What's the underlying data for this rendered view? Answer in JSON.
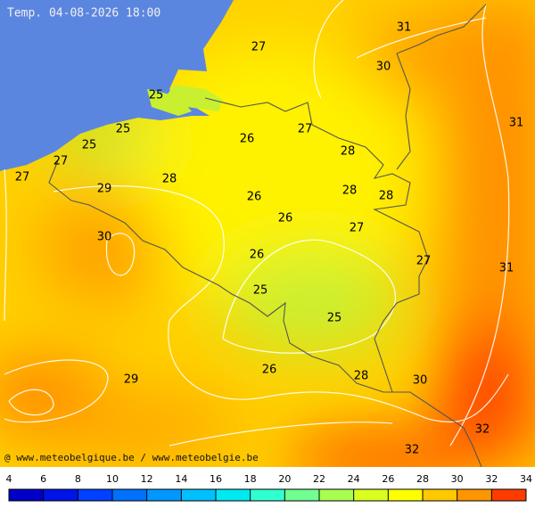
{
  "map": {
    "title": "Temp. 04-08-2026 18:00",
    "credit": "@ www.meteobelgique.be / www.meteobelgie.be",
    "contour_labels": [
      27,
      31,
      30,
      25,
      31,
      25,
      26,
      27,
      28,
      25,
      27,
      27,
      29,
      28,
      26,
      28,
      28,
      26,
      27,
      30,
      26,
      27,
      31,
      25,
      25,
      26,
      29,
      28,
      30,
      32,
      32
    ],
    "colorbar": {
      "ticks": [
        4,
        6,
        8,
        10,
        12,
        14,
        16,
        18,
        20,
        22,
        24,
        26,
        28,
        30,
        32,
        34
      ],
      "colors": [
        "#0000c8",
        "#0014e6",
        "#0040ff",
        "#0070ff",
        "#0098ff",
        "#00c0ff",
        "#00e8f0",
        "#30ffd0",
        "#70ff90",
        "#a8ff50",
        "#d8ff20",
        "#ffff00",
        "#ffc800",
        "#ff9600",
        "#ff3c00"
      ]
    }
  }
}
